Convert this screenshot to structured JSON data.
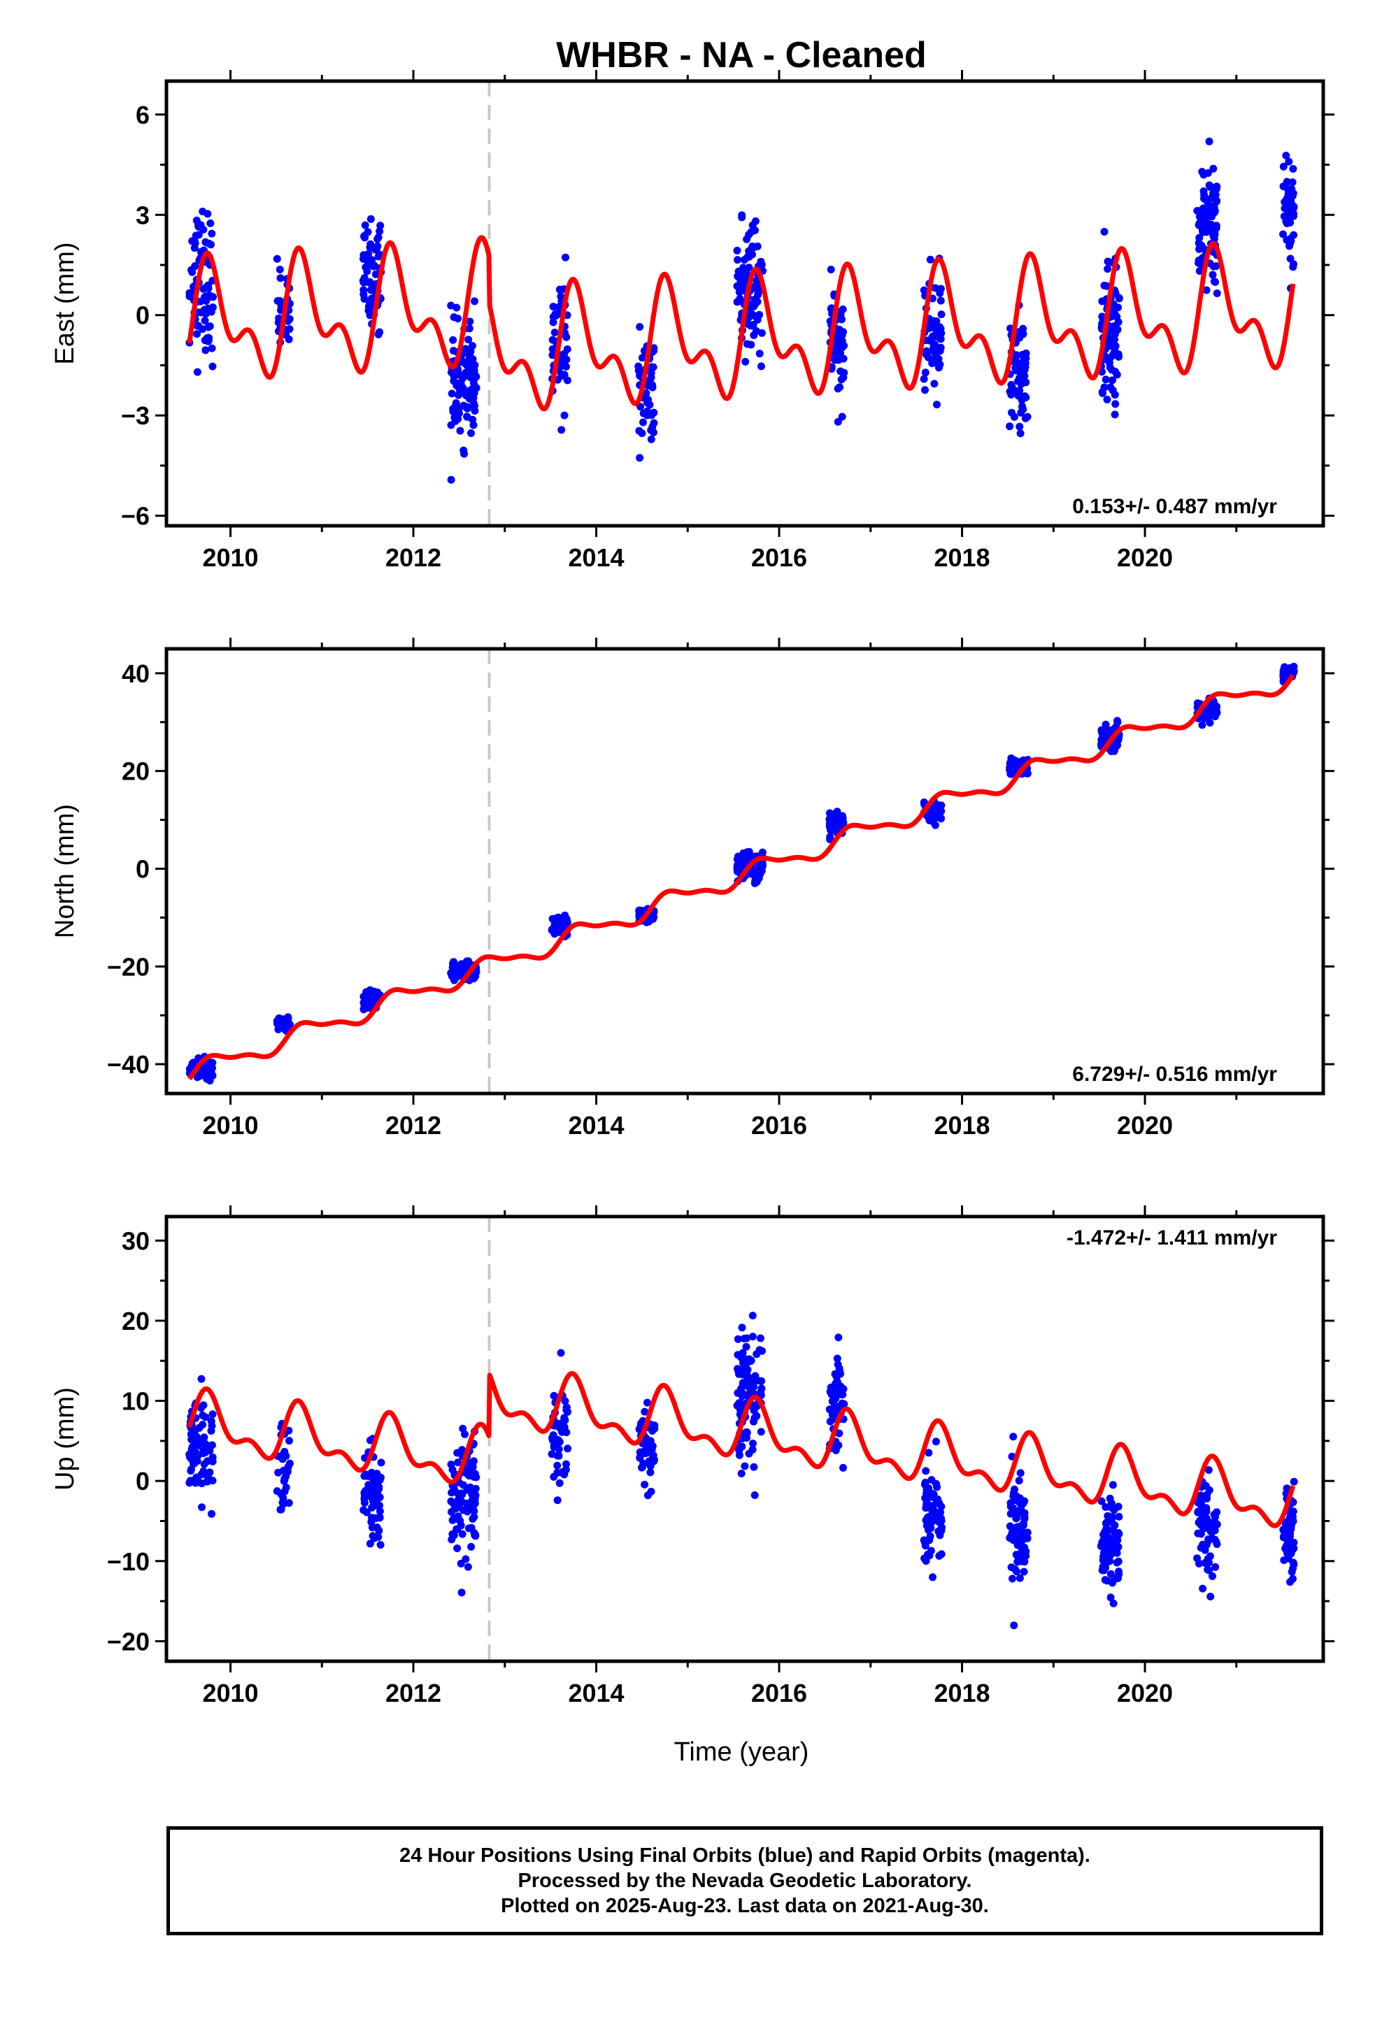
{
  "title": "WHBR  - NA - Cleaned",
  "xlabel": "Time (year)",
  "footer": {
    "line1": "24 Hour Positions Using Final Orbits (blue) and Rapid Orbits (magenta).",
    "line2": "Processed by the Nevada Geodetic Laboratory.",
    "line3": "Plotted on 2025-Aug-23. Last data on 2021-Aug-30."
  },
  "colors": {
    "final_orbits": "#0000ff",
    "model": "#ff0000",
    "event_line": "#c8c8c8"
  },
  "chart_data": [
    {
      "type": "scatter",
      "component": "east",
      "ylabel": "East (mm)",
      "xlim": [
        2009.3,
        2021.95
      ],
      "ylim": [
        -6.3,
        7.0
      ],
      "xticks": [
        2010,
        2012,
        2014,
        2016,
        2018,
        2020
      ],
      "yticks": [
        -6,
        -3,
        0,
        3,
        6
      ],
      "ytick_labels": [
        "−6",
        "−3",
        "0",
        "3",
        "6"
      ],
      "rate_label": "0.153+/- 0.487 mm/yr",
      "rate_position": "bottom-right",
      "event_line_year": 2012.83,
      "model": {
        "offset": 0.6,
        "rate": 0.153,
        "ref_year": 2015.5,
        "annual_amp": 1.35,
        "annual_phase_year": 2009.55,
        "semiannual_amp": 0.9,
        "semiannual_phase_year": 2009.6
      },
      "clusters": [
        {
          "center": 2009.68,
          "width": 0.26,
          "mean": 1.0,
          "spread": 1.6,
          "n": 80
        },
        {
          "center": 2010.58,
          "width": 0.14,
          "mean": 0.2,
          "spread": 1.0,
          "n": 30
        },
        {
          "center": 2011.55,
          "width": 0.2,
          "mean": 1.2,
          "spread": 1.1,
          "n": 70
        },
        {
          "center": 2012.55,
          "width": 0.28,
          "mean": -2.0,
          "spread": 1.2,
          "n": 110
        },
        {
          "center": 2013.6,
          "width": 0.18,
          "mean": -0.8,
          "spread": 1.3,
          "n": 50
        },
        {
          "center": 2014.55,
          "width": 0.18,
          "mean": -2.5,
          "spread": 1.4,
          "n": 50
        },
        {
          "center": 2015.68,
          "width": 0.28,
          "mean": 0.8,
          "spread": 1.3,
          "n": 110
        },
        {
          "center": 2016.63,
          "width": 0.16,
          "mean": -1.0,
          "spread": 1.1,
          "n": 60
        },
        {
          "center": 2017.68,
          "width": 0.2,
          "mean": -0.5,
          "spread": 1.3,
          "n": 60
        },
        {
          "center": 2018.62,
          "width": 0.2,
          "mean": -1.8,
          "spread": 1.2,
          "n": 70
        },
        {
          "center": 2019.62,
          "width": 0.2,
          "mean": -0.6,
          "spread": 1.4,
          "n": 90
        },
        {
          "center": 2020.68,
          "width": 0.22,
          "mean": 2.7,
          "spread": 1.4,
          "n": 90
        },
        {
          "center": 2021.57,
          "width": 0.12,
          "mean": 3.2,
          "spread": 1.2,
          "n": 50
        }
      ]
    },
    {
      "type": "scatter",
      "component": "north",
      "ylabel": "North (mm)",
      "xlim": [
        2009.3,
        2021.95
      ],
      "ylim": [
        -46,
        45
      ],
      "xticks": [
        2010,
        2012,
        2014,
        2016,
        2018,
        2020
      ],
      "yticks": [
        -40,
        -20,
        0,
        20,
        40
      ],
      "ytick_labels": [
        "−40",
        "−20",
        "0",
        "20",
        "40"
      ],
      "rate_label": "6.729+/- 0.516 mm/yr",
      "rate_position": "bottom-right",
      "event_line_year": 2012.83,
      "model": {
        "offset": -2.0,
        "rate": 6.729,
        "ref_year": 2015.5,
        "annual_amp": 1.8,
        "annual_phase_year": 2009.6,
        "semiannual_amp": 0.7,
        "semiannual_phase_year": 2009.6
      },
      "clusters": [
        {
          "center": 2009.68,
          "width": 0.26,
          "mean": -40.8,
          "spread": 1.4,
          "n": 80
        },
        {
          "center": 2010.58,
          "width": 0.14,
          "mean": -32.0,
          "spread": 1.3,
          "n": 30
        },
        {
          "center": 2011.55,
          "width": 0.2,
          "mean": -27.0,
          "spread": 1.4,
          "n": 60
        },
        {
          "center": 2012.55,
          "width": 0.28,
          "mean": -21.0,
          "spread": 1.3,
          "n": 100
        },
        {
          "center": 2013.6,
          "width": 0.18,
          "mean": -11.5,
          "spread": 1.3,
          "n": 50
        },
        {
          "center": 2014.55,
          "width": 0.18,
          "mean": -9.5,
          "spread": 1.0,
          "n": 50
        },
        {
          "center": 2015.68,
          "width": 0.28,
          "mean": 0.5,
          "spread": 1.9,
          "n": 110
        },
        {
          "center": 2016.63,
          "width": 0.16,
          "mean": 9.5,
          "spread": 1.5,
          "n": 60
        },
        {
          "center": 2017.68,
          "width": 0.2,
          "mean": 12.0,
          "spread": 1.5,
          "n": 50
        },
        {
          "center": 2018.62,
          "width": 0.2,
          "mean": 20.5,
          "spread": 1.3,
          "n": 70
        },
        {
          "center": 2019.62,
          "width": 0.2,
          "mean": 27.0,
          "spread": 1.8,
          "n": 90
        },
        {
          "center": 2020.68,
          "width": 0.22,
          "mean": 32.0,
          "spread": 1.5,
          "n": 70
        },
        {
          "center": 2021.57,
          "width": 0.12,
          "mean": 40.0,
          "spread": 1.0,
          "n": 50
        }
      ]
    },
    {
      "type": "scatter",
      "component": "up",
      "ylabel": "Up (mm)",
      "xlim": [
        2009.3,
        2021.95
      ],
      "ylim": [
        -22.5,
        33
      ],
      "xticks": [
        2010,
        2012,
        2014,
        2016,
        2018,
        2020
      ],
      "yticks": [
        -20,
        -10,
        0,
        10,
        20,
        30
      ],
      "ytick_labels": [
        "−20",
        "−10",
        "0",
        "10",
        "20",
        "30"
      ],
      "rate_label": "-1.472+/- 1.411 mm/yr",
      "rate_position": "top-right",
      "event_line_year": 2012.83,
      "event_offset": 7.8,
      "model": {
        "offset": -1.6,
        "rate": -1.472,
        "ref_year": 2015.5,
        "annual_amp": 3.0,
        "annual_phase_year": 2009.52,
        "semiannual_amp": 1.7,
        "semiannual_phase_year": 2009.6
      },
      "clusters": [
        {
          "center": 2009.68,
          "width": 0.26,
          "mean": 4.0,
          "spread": 5.0,
          "n": 80
        },
        {
          "center": 2010.58,
          "width": 0.14,
          "mean": 1.0,
          "spread": 4.5,
          "n": 30
        },
        {
          "center": 2011.55,
          "width": 0.2,
          "mean": -2.0,
          "spread": 4.8,
          "n": 70
        },
        {
          "center": 2012.55,
          "width": 0.28,
          "mean": -3.0,
          "spread": 5.2,
          "n": 100
        },
        {
          "center": 2013.6,
          "width": 0.18,
          "mean": 5.0,
          "spread": 5.0,
          "n": 50
        },
        {
          "center": 2014.55,
          "width": 0.18,
          "mean": 4.0,
          "spread": 4.5,
          "n": 50
        },
        {
          "center": 2015.68,
          "width": 0.28,
          "mean": 11.0,
          "spread": 5.5,
          "n": 110
        },
        {
          "center": 2016.63,
          "width": 0.16,
          "mean": 10.0,
          "spread": 4.5,
          "n": 60
        },
        {
          "center": 2017.68,
          "width": 0.2,
          "mean": -4.0,
          "spread": 4.5,
          "n": 60
        },
        {
          "center": 2018.62,
          "width": 0.2,
          "mean": -5.0,
          "spread": 5.5,
          "n": 80
        },
        {
          "center": 2019.62,
          "width": 0.2,
          "mean": -8.0,
          "spread": 4.5,
          "n": 90
        },
        {
          "center": 2020.68,
          "width": 0.22,
          "mean": -6.0,
          "spread": 4.0,
          "n": 70
        },
        {
          "center": 2021.57,
          "width": 0.12,
          "mean": -6.0,
          "spread": 4.0,
          "n": 50
        }
      ]
    }
  ]
}
